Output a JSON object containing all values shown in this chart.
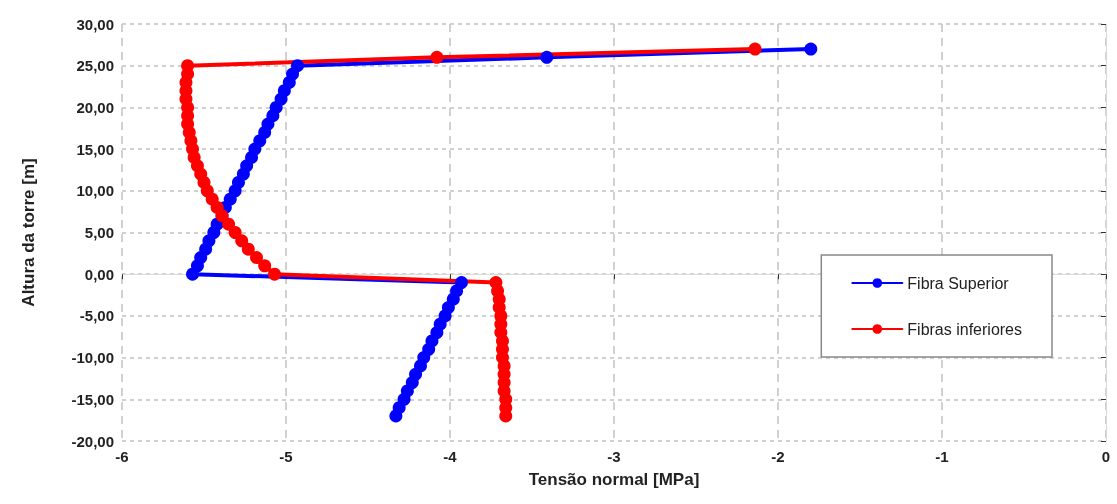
{
  "chart_data": {
    "type": "line",
    "xlabel": "Tensão normal [MPa]",
    "ylabel": "Altura da torre [m]",
    "xlim": [
      -6,
      0
    ],
    "xticks": [
      -6,
      -5,
      -4,
      -3,
      -2,
      -1,
      0
    ],
    "ylim": [
      -20,
      30
    ],
    "yticks": [
      {
        "value": -20,
        "label": "-20,00"
      },
      {
        "value": -15,
        "label": "-15,00"
      },
      {
        "value": -10,
        "label": "-10,00"
      },
      {
        "value": -5,
        "label": "-5,00"
      },
      {
        "value": 0,
        "label": "0,00"
      },
      {
        "value": 5,
        "label": "5,00"
      },
      {
        "value": 10,
        "label": "10,00"
      },
      {
        "value": 15,
        "label": "15,00"
      },
      {
        "value": 20,
        "label": "20,00"
      },
      {
        "value": 25,
        "label": "25,00"
      },
      {
        "value": 30,
        "label": "30,00"
      }
    ],
    "grid": true,
    "legend": "right",
    "marker": "circle",
    "line_style": "solid",
    "series": [
      {
        "name": "Fibra Superior",
        "color": "#0000ff",
        "x": [
          -4.33,
          -4.31,
          -4.28,
          -4.26,
          -4.23,
          -4.21,
          -4.18,
          -4.16,
          -4.13,
          -4.11,
          -4.08,
          -4.06,
          -4.03,
          -4.01,
          -3.98,
          -3.96,
          -3.93,
          -5.57,
          -5.54,
          -5.52,
          -5.49,
          -5.47,
          -5.44,
          -5.42,
          -5.39,
          -5.37,
          -5.34,
          -5.31,
          -5.29,
          -5.26,
          -5.24,
          -5.21,
          -5.19,
          -5.16,
          -5.13,
          -5.11,
          -5.08,
          -5.06,
          -5.03,
          -5.01,
          -4.98,
          -4.96,
          -4.93,
          -3.41,
          -1.8
        ],
        "values": [
          -17,
          -16,
          -15,
          -14,
          -13,
          -12,
          -11,
          -10,
          -9,
          -8,
          -7,
          -6,
          -5,
          -4,
          -3,
          -2,
          -1,
          0,
          1,
          2,
          3,
          4,
          5,
          6,
          7,
          8,
          9,
          10,
          11,
          12,
          13,
          14,
          15,
          16,
          17,
          18,
          19,
          20,
          21,
          22,
          23,
          24,
          25,
          26,
          27
        ]
      },
      {
        "name": "Fibras inferiores",
        "color": "#ff0000",
        "x": [
          -3.66,
          -3.66,
          -3.66,
          -3.67,
          -3.67,
          -3.67,
          -3.67,
          -3.68,
          -3.68,
          -3.68,
          -3.69,
          -3.69,
          -3.69,
          -3.7,
          -3.7,
          -3.71,
          -3.72,
          -5.07,
          -5.13,
          -5.18,
          -5.23,
          -5.27,
          -5.31,
          -5.35,
          -5.39,
          -5.42,
          -5.45,
          -5.48,
          -5.5,
          -5.52,
          -5.54,
          -5.56,
          -5.57,
          -5.58,
          -5.59,
          -5.6,
          -5.6,
          -5.6,
          -5.61,
          -5.61,
          -5.61,
          -5.6,
          -5.6,
          -4.08,
          -2.14
        ],
        "values": [
          -17,
          -16,
          -15,
          -14,
          -13,
          -12,
          -11,
          -10,
          -9,
          -8,
          -7,
          -6,
          -5,
          -4,
          -3,
          -2,
          -1,
          0,
          1,
          2,
          3,
          4,
          5,
          6,
          7,
          8,
          9,
          10,
          11,
          12,
          13,
          14,
          15,
          16,
          17,
          18,
          19,
          20,
          21,
          22,
          23,
          24,
          25,
          26,
          27
        ]
      }
    ]
  }
}
